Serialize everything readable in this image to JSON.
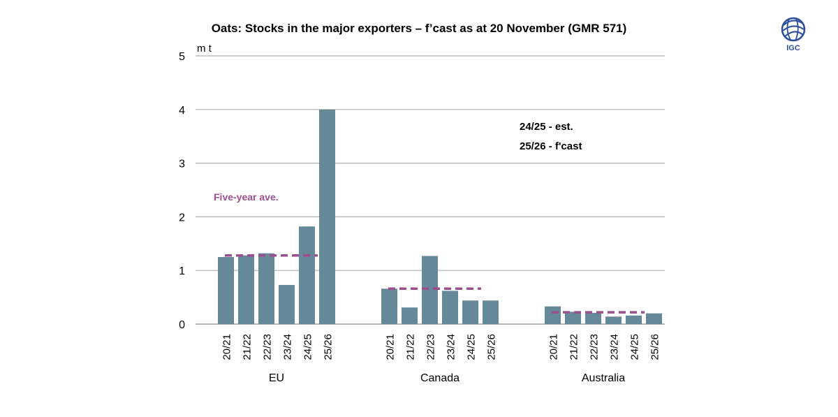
{
  "chart_data": {
    "type": "bar",
    "title": "Oats: Stocks in the major exporters – f’cast as at 20 November (GMR 571)",
    "ylabel": "m t",
    "xlabel": "",
    "ylim": [
      0,
      5
    ],
    "yticks": [
      0,
      1,
      2,
      3,
      4,
      5
    ],
    "grid": true,
    "bar_color": "#66899a",
    "avg_color": "#9e4e8f",
    "avg_label": "Five-year ave.",
    "notes": [
      "24/25 - est.",
      "25/26 - f'cast"
    ],
    "groups": [
      {
        "name": "EU",
        "categories": [
          "20/21",
          "21/22",
          "22/23",
          "23/24",
          "24/25",
          "25/26"
        ],
        "values": [
          1.25,
          1.28,
          1.32,
          0.73,
          1.82,
          4.0
        ],
        "five_year_ave": 1.28
      },
      {
        "name": "Canada",
        "categories": [
          "20/21",
          "21/22",
          "22/23",
          "23/24",
          "24/25",
          "25/26"
        ],
        "values": [
          0.66,
          0.31,
          1.27,
          0.62,
          0.44,
          0.44
        ],
        "five_year_ave": 0.66
      },
      {
        "name": "Australia",
        "categories": [
          "20/21",
          "21/22",
          "22/23",
          "23/24",
          "24/25",
          "25/26"
        ],
        "values": [
          0.33,
          0.23,
          0.21,
          0.14,
          0.16,
          0.2
        ],
        "five_year_ave": 0.22
      }
    ]
  },
  "logo": {
    "text": "IGC",
    "color": "#2b4f9e"
  }
}
